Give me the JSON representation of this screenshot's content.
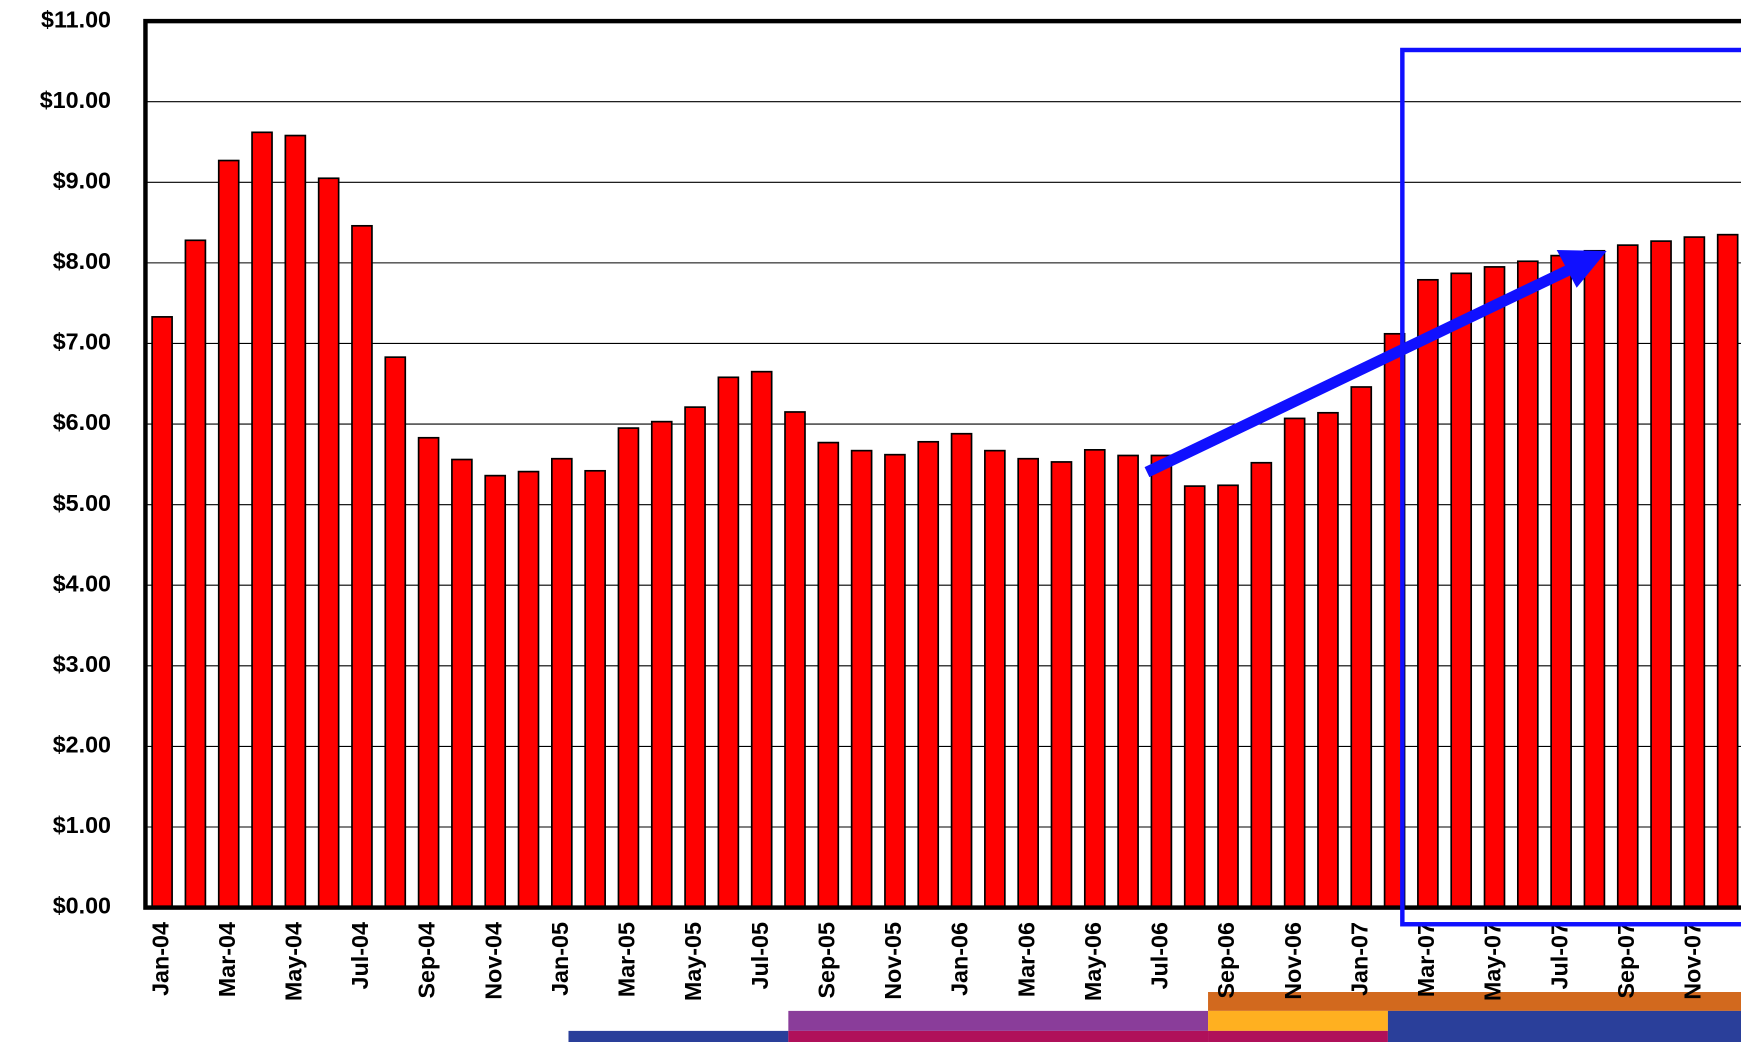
{
  "chart_data": {
    "type": "bar",
    "categories": [
      "Jan-04",
      null,
      "Mar-04",
      null,
      "May-04",
      null,
      "Jul-04",
      null,
      "Sep-04",
      null,
      "Nov-04",
      null,
      "Jan-05",
      null,
      "Mar-05",
      null,
      "May-05",
      null,
      "Jul-05",
      null,
      "Sep-05",
      null,
      "Nov-05",
      null,
      "Jan-06",
      null,
      "Mar-06",
      null,
      "May-06",
      null,
      "Jul-06",
      null,
      "Sep-06",
      null,
      "Nov-06",
      null,
      "Jan-07",
      null,
      "Mar-07",
      null,
      "May-07",
      null,
      "Jul-07",
      null,
      "Sep-07",
      null,
      "Nov-07",
      null
    ],
    "values": [
      7.33,
      8.28,
      9.27,
      9.62,
      9.58,
      9.05,
      8.46,
      6.83,
      5.83,
      5.56,
      5.36,
      5.41,
      5.57,
      5.42,
      5.95,
      6.03,
      6.21,
      6.58,
      6.65,
      6.15,
      5.77,
      5.67,
      5.62,
      5.78,
      5.88,
      5.67,
      5.57,
      5.53,
      5.68,
      5.61,
      5.61,
      5.23,
      5.24,
      5.52,
      6.07,
      6.14,
      6.46,
      7.12,
      7.79,
      7.87,
      7.95,
      8.02,
      8.09,
      8.15,
      8.22,
      8.27,
      8.32,
      8.35
    ],
    "color": "#ff0000",
    "ylim": [
      0,
      11
    ],
    "yticks": [
      {
        "value": 0,
        "label": "$0.00"
      },
      {
        "value": 1,
        "label": "$1.00"
      },
      {
        "value": 2,
        "label": "$2.00"
      },
      {
        "value": 3,
        "label": "$3.00"
      },
      {
        "value": 4,
        "label": "$4.00"
      },
      {
        "value": 5,
        "label": "$5.00"
      },
      {
        "value": 6,
        "label": "$6.00"
      },
      {
        "value": 7,
        "label": "$7.00"
      },
      {
        "value": 8,
        "label": "$8.00"
      },
      {
        "value": 9,
        "label": "$9.00"
      },
      {
        "value": 10,
        "label": "$10.00"
      },
      {
        "value": 11,
        "label": "$11.00"
      }
    ],
    "grid": true
  }
}
